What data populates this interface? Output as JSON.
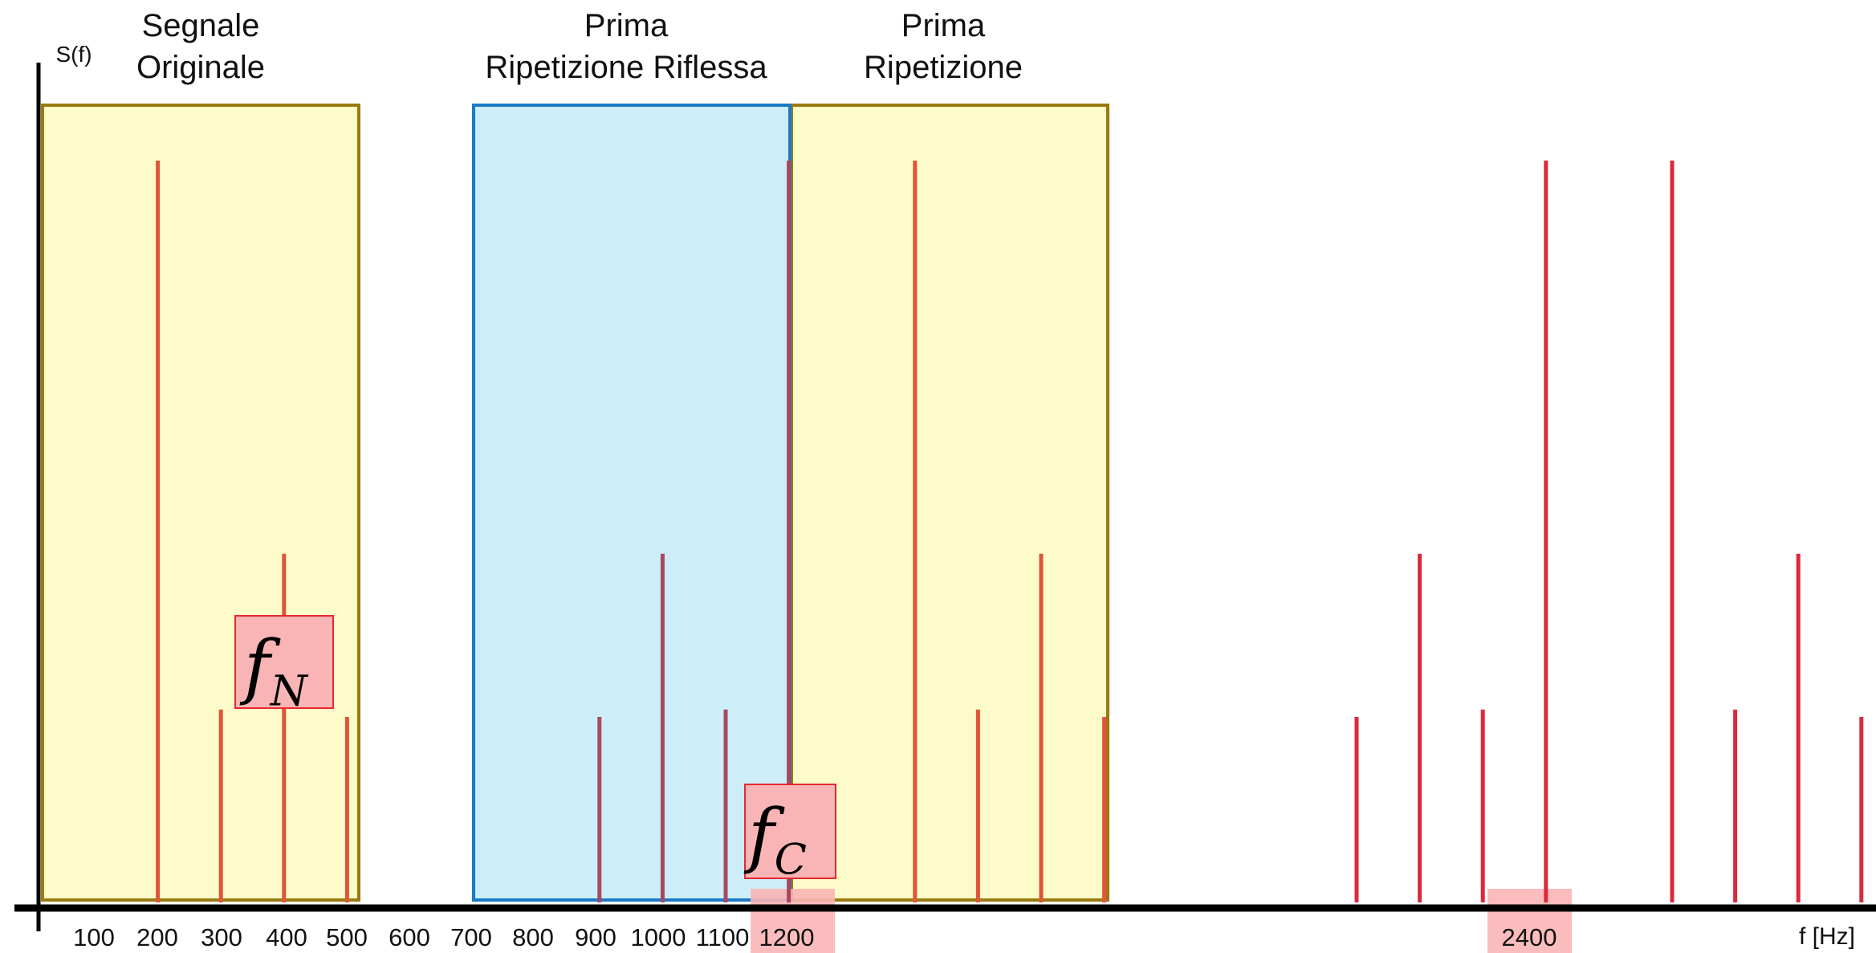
{
  "title_boxes": [
    {
      "id": "original",
      "label_line1": "Segnale",
      "label_line2": "Originale"
    },
    {
      "id": "reflected",
      "label_line1": "Prima",
      "label_line2": "Ripetizione Riflessa"
    },
    {
      "id": "repetition",
      "label_line1": "Prima",
      "label_line2": "Ripetizione"
    }
  ],
  "axes": {
    "y_label": "S(f)",
    "x_label": "f [Hz]"
  },
  "markers": {
    "fn": {
      "base": "f",
      "sub": "N"
    },
    "fc": {
      "base": "f",
      "sub": "C"
    }
  },
  "colors": {
    "yellow_fill": "#fdfbc9",
    "yellow_border": "#9a7a10",
    "blue_fill": "#cdeef8",
    "blue_border": "#1a7ac9",
    "line_orange": "#e0543a",
    "line_purple": "#a8475f",
    "line_red": "#d92b3c",
    "marker_fill": "#f9b5b5",
    "marker_border": "#e8282e"
  },
  "chart_data": {
    "type": "bar",
    "xlabel": "f [Hz]",
    "ylabel": "S(f)",
    "tick_labels": [
      "100",
      "200",
      "300",
      "400",
      "500",
      "600",
      "700",
      "800",
      "900",
      "1000",
      "1100",
      "1200",
      "2400"
    ],
    "highlighted_ticks": [
      "1200",
      "2400"
    ],
    "series": [
      {
        "group": "original",
        "x": [
          100,
          200,
          300,
          400
        ],
        "values": [
          1.0,
          0.26,
          0.47,
          0.25
        ]
      },
      {
        "group": "reflected",
        "x": [
          800,
          900,
          1000,
          1100
        ],
        "values": [
          0.25,
          0.47,
          0.26,
          1.0
        ]
      },
      {
        "group": "repetition",
        "x": [
          1300,
          1400,
          1500,
          1600
        ],
        "values": [
          1.0,
          0.26,
          0.47,
          0.25
        ]
      },
      {
        "group": "second",
        "x": [
          2000,
          2100,
          2200,
          2300,
          2500,
          2600,
          2700,
          2800
        ],
        "values": [
          0.25,
          0.47,
          0.26,
          1.0,
          1.0,
          0.26,
          0.47,
          0.25
        ]
      }
    ]
  }
}
